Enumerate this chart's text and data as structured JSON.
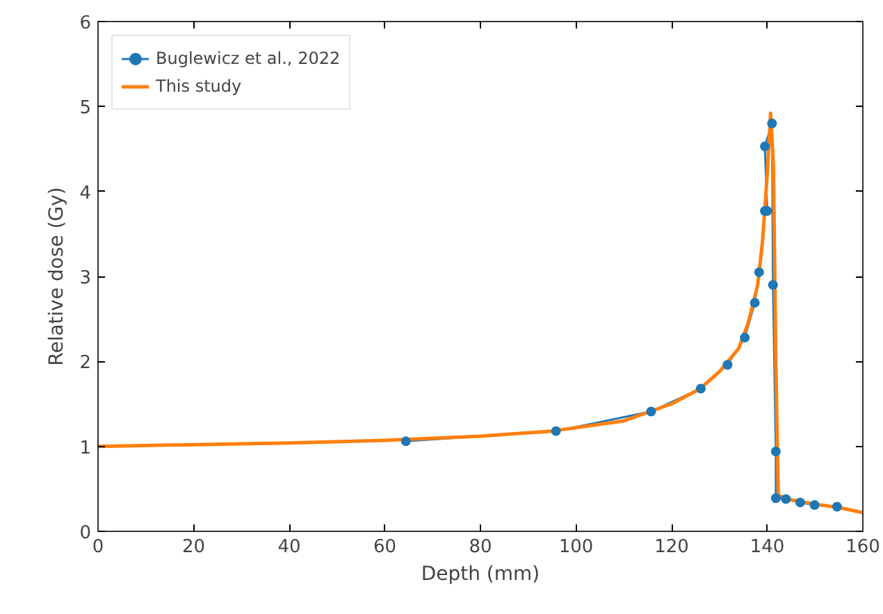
{
  "chart_data": {
    "type": "line",
    "xlabel": "Depth (mm)",
    "ylabel": "Relative dose (Gy)",
    "xlim": [
      0,
      160
    ],
    "ylim": [
      0,
      6
    ],
    "xticks": [
      0,
      20,
      40,
      60,
      80,
      100,
      120,
      140,
      160
    ],
    "yticks": [
      0,
      1,
      2,
      3,
      4,
      5,
      6
    ],
    "grid": false,
    "legend": "top left",
    "series": [
      {
        "name": "Buglewicz et al., 2022",
        "color": "#1f77b4",
        "marker": "circle",
        "x": [
          64.4,
          95.8,
          115.7,
          126.1,
          131.7,
          135.3,
          137.4,
          138.3,
          139.5,
          140.0,
          139.5,
          141.0,
          141.2,
          141.8,
          141.8,
          143.9,
          146.9,
          149.9,
          154.6
        ],
        "values": [
          1.06,
          1.18,
          1.41,
          1.68,
          1.96,
          2.28,
          2.69,
          3.05,
          3.77,
          3.77,
          4.53,
          4.8,
          2.9,
          0.94,
          0.39,
          0.38,
          0.34,
          0.31,
          0.29
        ]
      },
      {
        "name": "This study",
        "color": "#ff7f0e",
        "marker": "none",
        "x": [
          0,
          20,
          40,
          60,
          80,
          95,
          110,
          120,
          126,
          130,
          134,
          136,
          138,
          139,
          140,
          140.7,
          141.3,
          141.8,
          142.3,
          145,
          150,
          155,
          160
        ],
        "values": [
          1.0,
          1.02,
          1.04,
          1.07,
          1.12,
          1.18,
          1.3,
          1.5,
          1.68,
          1.88,
          2.15,
          2.45,
          2.9,
          3.4,
          4.2,
          4.92,
          4.3,
          2.0,
          0.42,
          0.37,
          0.32,
          0.28,
          0.22
        ]
      }
    ]
  }
}
